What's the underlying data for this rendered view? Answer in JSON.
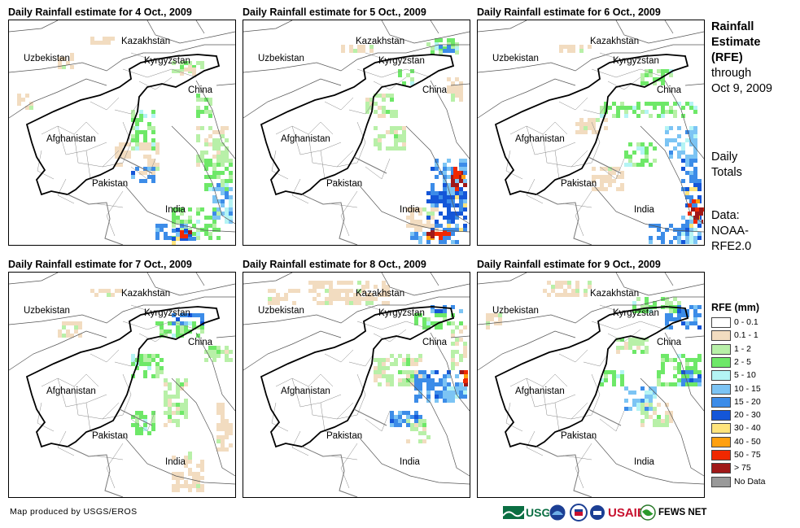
{
  "panels": [
    {
      "title": "Daily Rainfall estimate for 4 Oct., 2009"
    },
    {
      "title": "Daily Rainfall estimate for 5 Oct., 2009"
    },
    {
      "title": "Daily Rainfall estimate for 6 Oct., 2009"
    },
    {
      "title": "Daily Rainfall estimate for 7 Oct., 2009"
    },
    {
      "title": "Daily Rainfall estimate for 8 Oct., 2009"
    },
    {
      "title": "Daily Rainfall estimate for 9 Oct., 2009"
    }
  ],
  "map_labels": {
    "kazakhstan": "Kazakhstan",
    "uzbekistan": "Uzbekistan",
    "kyrgyzstan": "Kyrgyzstan",
    "china": "China",
    "afghanistan": "Afghanistan",
    "pakistan": "Pakistan",
    "india": "India"
  },
  "sidebar": {
    "title_line1": "Rainfall",
    "title_line2": "Estimate",
    "title_line3": "(RFE)",
    "through_line1": "through",
    "through_line2": "Oct 9, 2009",
    "daily_line1": "Daily",
    "daily_line2": "Totals",
    "data_line1": "Data:",
    "data_line2": "NOAA-",
    "data_line3": "RFE2.0"
  },
  "legend": {
    "title": "RFE (mm)",
    "items": [
      {
        "label": "0 - 0.1",
        "color": "#ffffff"
      },
      {
        "label": "0.1 - 1",
        "color": "#f2dcc0"
      },
      {
        "label": "1 - 2",
        "color": "#b8f0a8"
      },
      {
        "label": "2 - 5",
        "color": "#6ee868"
      },
      {
        "label": "5 - 10",
        "color": "#b4f4f4"
      },
      {
        "label": "10 - 15",
        "color": "#7cc4f4"
      },
      {
        "label": "15 - 20",
        "color": "#3c8ce8"
      },
      {
        "label": "20 - 30",
        "color": "#1456d8"
      },
      {
        "label": "30 - 40",
        "color": "#ffe47c"
      },
      {
        "label": "40 - 50",
        "color": "#ffa010"
      },
      {
        "label": "50 - 75",
        "color": "#f02800"
      },
      {
        "label": "> 75",
        "color": "#a01818"
      },
      {
        "label": "No Data",
        "color": "#999999"
      }
    ]
  },
  "credit": "Map produced by USGS/EROS",
  "logos": {
    "usgs": "USGS",
    "usaid": "USAID",
    "fewsnet": "FEWS NET"
  }
}
